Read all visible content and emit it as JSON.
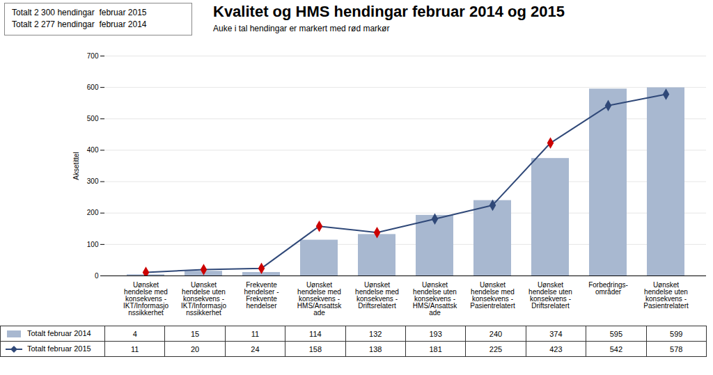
{
  "chart_data": {
    "type": "bar",
    "title": "Kvalitet og HMS hendingar februar 2014 og 2015",
    "subtitle": "Auke i tal hendingar er markert med rød markør",
    "annotations": [
      "Totalt 2 300 hendingar  februar 2015",
      "Totalt 2 277 hendingar  februar 2014"
    ],
    "ylabel": "Aksetittel",
    "categories": [
      "Uønsket\nhendelse med\nkonsekvens -\nIKT/Informasjo\nnssikkerhet",
      "Uønsket\nhendelse uten\nkonsekvens -\nIKT/Informasjo\nnssikkerhet",
      "Frekvente\nhendelser -\nFrekvente\nhendelser",
      "Uønsket\nhendelse med\nkonsekvens -\nHMS/Ansattsk\nade",
      "Uønsket\nhendelse med\nkonsekvens -\nDriftsrelatert",
      "Uønsket\nhendelse uten\nkonsekvens -\nHMS/Ansattsk\nade",
      "Uønsket\nhendelse med\nkonsekvens -\nPasientrelatert",
      "Uønsket\nhendelse uten\nkonsekvens -\nDriftsrelatert",
      "Forbedrings-\nområder",
      "Uønsket\nhendelse uten\nkonsekvens -\nPasientrelatert"
    ],
    "series": [
      {
        "name": "Totalt februar 2014",
        "type": "bar",
        "color": "#a8b8d0",
        "values": [
          4,
          15,
          11,
          114,
          132,
          193,
          240,
          374,
          595,
          599
        ]
      },
      {
        "name": "Totalt februar 2015",
        "type": "line",
        "color": "#2f4878",
        "marker": "diamond",
        "colors": [
          "#cc0000",
          "#cc0000",
          "#cc0000",
          "#cc0000",
          "#cc0000",
          "#2f4878",
          "#2f4878",
          "#cc0000",
          "#2f4878",
          "#2f4878"
        ],
        "values": [
          11,
          20,
          24,
          158,
          138,
          181,
          225,
          423,
          542,
          578
        ]
      }
    ],
    "ylim": [
      0,
      700
    ],
    "yticks": [
      0,
      100,
      200,
      300,
      400,
      500,
      600,
      700
    ],
    "grid": true
  }
}
